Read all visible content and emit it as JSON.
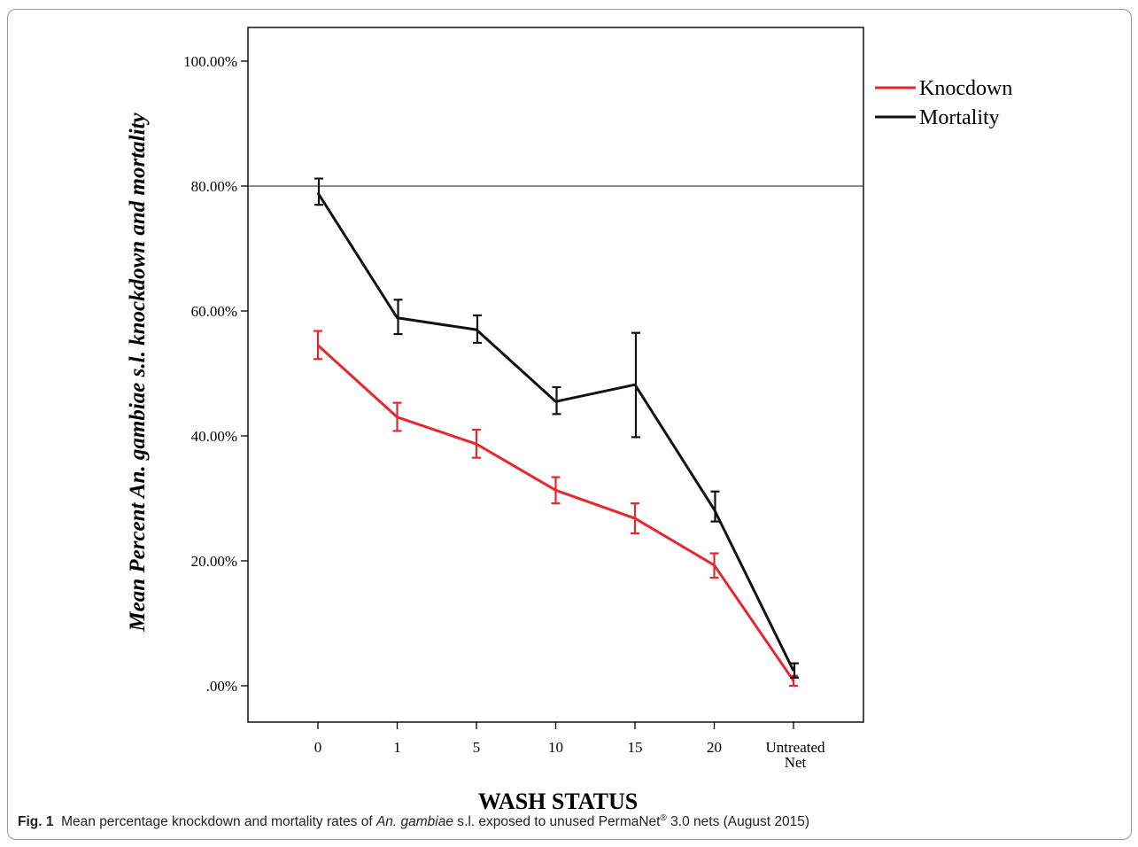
{
  "chart_data": {
    "type": "line",
    "categories": [
      "0",
      "1",
      "5",
      "10",
      "15",
      "20",
      "Untreated Net"
    ],
    "ylabel": "Mean Percent An. gambiae s.l. knockdown and mortality",
    "xlabel": "WASH STATUS",
    "ylim": [
      0,
      100
    ],
    "yticks": [
      ".00%",
      "20.00%",
      "40.00%",
      "60.00%",
      "80.00%",
      "100.00%"
    ],
    "reference_line": 80,
    "grid": false,
    "legend_position": "top-right",
    "series": [
      {
        "name": "Knocdown",
        "color": "#e8262d",
        "values": [
          54.5,
          43.0,
          38.7,
          31.3,
          26.8,
          19.3,
          0.8
        ],
        "err_low": [
          52.3,
          40.8,
          36.5,
          29.2,
          24.4,
          17.3,
          0.0
        ],
        "err_high": [
          56.8,
          45.3,
          41.0,
          33.4,
          29.2,
          21.2,
          1.6
        ]
      },
      {
        "name": "Mortality",
        "color": "#111111",
        "values": [
          78.9,
          58.9,
          57.0,
          45.5,
          48.2,
          28.2,
          2.4
        ],
        "err_low": [
          77.0,
          56.3,
          54.9,
          43.5,
          39.8,
          26.3,
          1.3
        ],
        "err_high": [
          81.2,
          61.8,
          59.3,
          47.8,
          56.5,
          31.1,
          3.6
        ]
      }
    ]
  },
  "caption": {
    "label": "Fig. 1",
    "text_before": "Mean percentage knockdown and mortality rates of ",
    "italic": "An. gambiae",
    "text_middle": " s.l. exposed to unused PermaNet",
    "sup": "®",
    "text_after": " 3.0 nets (August 2015)"
  }
}
